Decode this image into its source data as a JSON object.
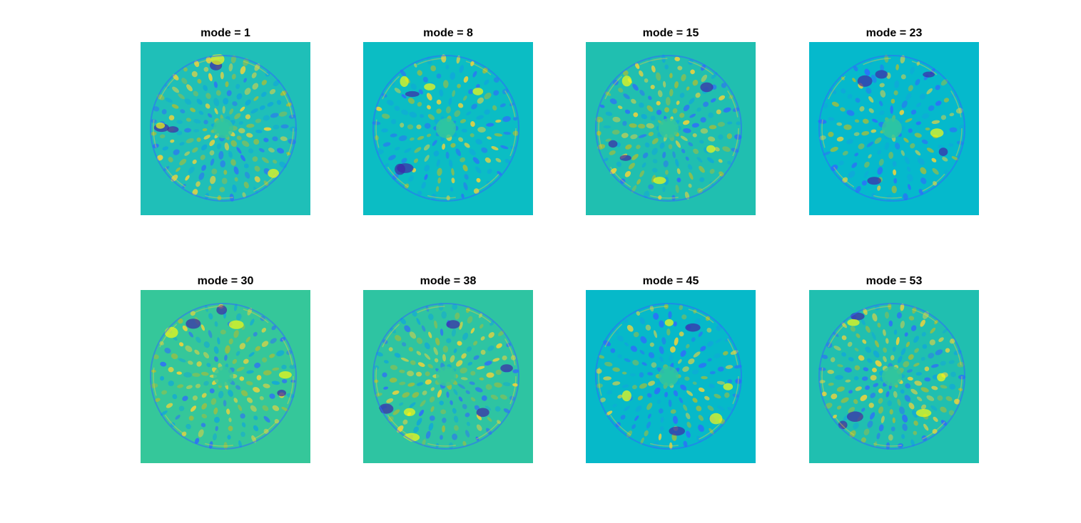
{
  "chart_data": [
    {
      "type": "heatmap",
      "title": "mode = 1",
      "background": "#1fbfb8",
      "features": []
    },
    {
      "type": "heatmap",
      "title": "mode = 8",
      "background": "#0bbdc4",
      "features": []
    },
    {
      "type": "heatmap",
      "title": "mode = 15",
      "background": "#20bfb0",
      "features": []
    },
    {
      "type": "heatmap",
      "title": "mode = 23",
      "background": "#05b9cc",
      "features": []
    },
    {
      "type": "heatmap",
      "title": "mode = 30",
      "background": "#35c79a",
      "features": []
    },
    {
      "type": "heatmap",
      "title": "mode = 38",
      "background": "#2ec4a2",
      "features": []
    },
    {
      "type": "heatmap",
      "title": "mode = 45",
      "background": "#06b9c9",
      "features": []
    },
    {
      "type": "heatmap",
      "title": "mode = 53",
      "background": "#20bfb0",
      "features": []
    }
  ],
  "colormap": [
    "#3e26a8",
    "#2f6afe",
    "#11a6db",
    "#06b9c9",
    "#35c79a",
    "#a5be3a",
    "#fcd434",
    "#f9fb0e"
  ]
}
